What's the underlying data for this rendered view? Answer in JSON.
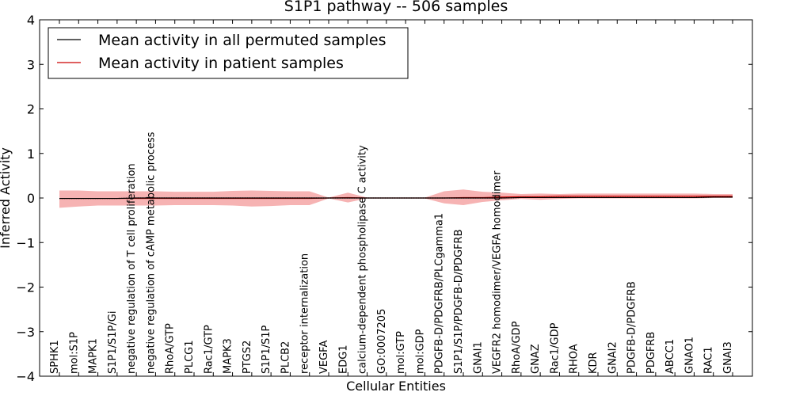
{
  "chart_data": {
    "type": "line",
    "title": "S1P1 pathway -- 506 samples",
    "xlabel": "Cellular Entities",
    "ylabel": "Inferred Activity",
    "ylim": [
      -4,
      4
    ],
    "yticks": [
      "−4",
      "−3",
      "−2",
      "−1",
      "0",
      "1",
      "2",
      "3",
      "4"
    ],
    "yticks_values": [
      -4,
      -3,
      -2,
      -1,
      0,
      1,
      2,
      3,
      4
    ],
    "legend_position": "top-left",
    "categories": [
      "SPHK1",
      "mol:S1P",
      "MAPK1",
      "S1P1/S1P/Gi",
      "negative regulation of T cell proliferation",
      "negative regulation of cAMP metabolic process",
      "RhoA/GTP",
      "PLCG1",
      "Rac1/GTP",
      "MAPK3",
      "PTGS2",
      "S1P1/S1P",
      "PLCB2",
      "receptor internalization",
      "VEGFA",
      "EDG1",
      "calcium-dependent phospholipase C activity",
      "GO:0007205",
      "mol:GTP",
      "mol:GDP",
      "PDGFB-D/PDGFRB/PLCgamma1",
      "S1P1/S1P/PDGFB-D/PDGFRB",
      "GNAI1",
      "VEGFR2 homodimer/VEGFA homodimer",
      "RhoA/GDP",
      "GNAZ",
      "Rac1/GDP",
      "RHOA",
      "KDR",
      "GNAI2",
      "PDGFB-D/PDGFRB",
      "PDGFRB",
      "ABCC1",
      "GNAO1",
      "RAC1",
      "GNAI3"
    ],
    "series": [
      {
        "name": "Mean activity in all permuted samples",
        "color": "#000000",
        "values": [
          -0.01,
          -0.01,
          -0.01,
          -0.01,
          0,
          0,
          0,
          0,
          0,
          0,
          0,
          0,
          0,
          0,
          0,
          0,
          0,
          0,
          0,
          0,
          0,
          0,
          0,
          0,
          0.01,
          0.01,
          0.01,
          0.01,
          0.01,
          0.01,
          0.01,
          0.01,
          0.01,
          0.01,
          0.02,
          0.02
        ]
      },
      {
        "name": "Mean activity in patient samples",
        "color": "#cc0000",
        "band_color": "#f08080",
        "values": [
          -0.01,
          -0.01,
          -0.01,
          -0.01,
          -0.01,
          -0.01,
          -0.01,
          -0.01,
          -0.01,
          -0.01,
          -0.01,
          -0.01,
          -0.01,
          -0.01,
          0,
          0.01,
          0,
          0,
          0,
          0,
          0,
          0.01,
          0.01,
          0.02,
          0.03,
          0.03,
          0.04,
          0.04,
          0.04,
          0.04,
          0.04,
          0.04,
          0.04,
          0.04,
          0.04,
          0.04
        ],
        "upper": [
          0.17,
          0.17,
          0.15,
          0.15,
          0.15,
          0.15,
          0.14,
          0.14,
          0.14,
          0.16,
          0.17,
          0.16,
          0.15,
          0.15,
          0.01,
          0.12,
          0.01,
          0.01,
          0.01,
          0.01,
          0.15,
          0.19,
          0.14,
          0.12,
          0.09,
          0.1,
          0.09,
          0.1,
          0.1,
          0.1,
          0.1,
          0.1,
          0.1,
          0.1,
          0.09,
          0.09
        ],
        "lower": [
          -0.22,
          -0.19,
          -0.17,
          -0.17,
          -0.17,
          -0.17,
          -0.16,
          -0.16,
          -0.16,
          -0.17,
          -0.19,
          -0.18,
          -0.16,
          -0.16,
          -0.01,
          -0.1,
          -0.01,
          -0.01,
          -0.01,
          -0.01,
          -0.12,
          -0.16,
          -0.09,
          -0.05,
          -0.02,
          -0.04,
          -0.02,
          -0.01,
          -0.01,
          -0.01,
          -0.01,
          -0.01,
          -0.01,
          -0.01,
          0,
          0
        ]
      }
    ]
  }
}
